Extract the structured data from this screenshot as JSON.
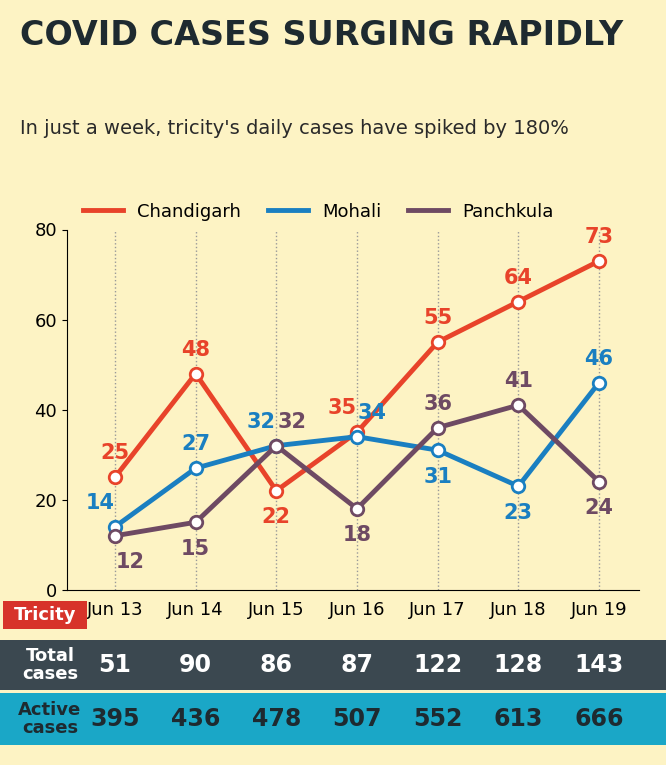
{
  "chart_data": {
    "type": "line",
    "title": "COVID CASES SURGING RAPIDLY",
    "subtitle": "In just a week, tricity's daily cases have spiked by 180%",
    "categories": [
      "Jun 13",
      "Jun 14",
      "Jun 15",
      "Jun 16",
      "Jun 17",
      "Jun 18",
      "Jun 19"
    ],
    "series": [
      {
        "name": "Chandigarh",
        "color": "#e8432a",
        "values": [
          25,
          48,
          22,
          35,
          55,
          64,
          73
        ]
      },
      {
        "name": "Mohali",
        "color": "#1a7fc1",
        "values": [
          14,
          27,
          32,
          34,
          31,
          23,
          46
        ]
      },
      {
        "name": "Panchkula",
        "color": "#6e4a63",
        "values": [
          12,
          15,
          32,
          18,
          36,
          41,
          24
        ]
      }
    ],
    "ylim": [
      0,
      80
    ],
    "yticks": [
      0,
      20,
      40,
      60,
      80
    ],
    "grid": "x",
    "legend": "upper left",
    "data_labels": true,
    "marker": "o"
  },
  "table": {
    "label": "Tricity",
    "rows": [
      {
        "label": "Total cases",
        "values": [
          51,
          90,
          86,
          87,
          122,
          128,
          143
        ]
      },
      {
        "label": "Active cases",
        "values": [
          395,
          436,
          478,
          507,
          552,
          613,
          666
        ]
      }
    ]
  }
}
